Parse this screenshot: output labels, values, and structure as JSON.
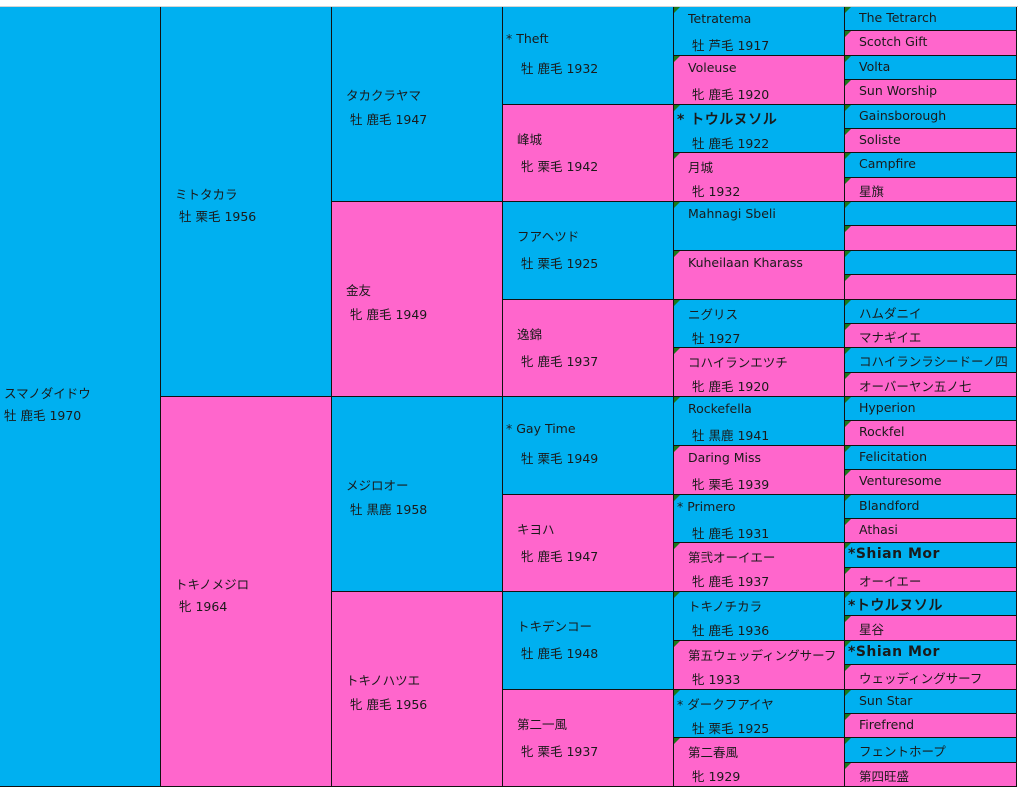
{
  "pedigree": {
    "gen1": [
      {
        "name": "スマノダイドウ",
        "info": "牡 鹿毛 1970"
      }
    ],
    "gen2": [
      {
        "name": "ミトタカラ",
        "info": "牡 栗毛 1956"
      },
      {
        "name": "トキノメジロ",
        "info": "牝  1964"
      }
    ],
    "gen3": [
      {
        "name": "タカクラヤマ",
        "info": "牡 鹿毛 1947"
      },
      {
        "name": "金友",
        "info": "牝 鹿毛 1949"
      },
      {
        "name": "メジロオー",
        "info": "牡 黒鹿 1958"
      },
      {
        "name": "トキノハツエ",
        "info": "牝 鹿毛 1956"
      }
    ],
    "gen4": [
      {
        "name": "* Theft",
        "info": "牡 鹿毛 1932"
      },
      {
        "name": "峰城",
        "info": "牝 栗毛 1942"
      },
      {
        "name": "フアヘツド",
        "info": "牡 栗毛 1925"
      },
      {
        "name": "逸錦",
        "info": "牝 鹿毛 1937"
      },
      {
        "name": "* Gay Time",
        "info": "牡 栗毛 1949"
      },
      {
        "name": "キヨハ",
        "info": "牝 鹿毛 1947"
      },
      {
        "name": "トキデンコー",
        "info": "牡 鹿毛 1948"
      },
      {
        "name": "第二一風",
        "info": "牝 栗毛 1937"
      }
    ],
    "gen5": [
      {
        "name": "Tetratema",
        "info": "牡 芦毛 1917"
      },
      {
        "name": "Voleuse",
        "info": "牝 鹿毛 1920"
      },
      {
        "name": "* トウルヌソル",
        "info": "牡 鹿毛 1922",
        "bold": true
      },
      {
        "name": "月城",
        "info": "牝  1932"
      },
      {
        "name": "Mahnagi Sbeli"
      },
      {
        "name": "Kuheilaan Kharass"
      },
      {
        "name": "ニグリス",
        "info": "牡  1927"
      },
      {
        "name": "コハイランエツチ",
        "info": "牝 鹿毛 1920"
      },
      {
        "name": "Rockefella",
        "info": "牡 黒鹿 1941"
      },
      {
        "name": "Daring Miss",
        "info": "牝 栗毛 1939"
      },
      {
        "name": "* Primero",
        "info": "牡 鹿毛 1931"
      },
      {
        "name": "第弐オーイエー",
        "info": "牝 鹿毛 1937"
      },
      {
        "name": "トキノチカラ",
        "info": "牡 鹿毛 1936"
      },
      {
        "name": "第五ウェッディングサーフ",
        "info": "牝  1933"
      },
      {
        "name": "* ダークフアイヤ",
        "info": "牡 栗毛 1925"
      },
      {
        "name": "第二春風",
        "info": "牝  1929"
      }
    ],
    "gen6": [
      {
        "name": "The Tetrarch"
      },
      {
        "name": "Scotch Gift"
      },
      {
        "name": "Volta"
      },
      {
        "name": "Sun Worship"
      },
      {
        "name": "Gainsborough"
      },
      {
        "name": "Soliste"
      },
      {
        "name": "Campfire"
      },
      {
        "name": "星旗"
      },
      null,
      null,
      null,
      null,
      {
        "name": "ハムダニイ"
      },
      {
        "name": "マナギイエ"
      },
      {
        "name": "コハイランラシードーノ四"
      },
      {
        "name": "オーバーヤン五ノ七"
      },
      {
        "name": "Hyperion"
      },
      {
        "name": "Rockfel"
      },
      {
        "name": "Felicitation"
      },
      {
        "name": "Venturesome"
      },
      {
        "name": "Blandford"
      },
      {
        "name": "Athasi"
      },
      {
        "name": "*Shian Mor",
        "bold": true
      },
      {
        "name": "オーイエー"
      },
      {
        "name": "*トウルヌソル",
        "bold": true
      },
      {
        "name": "星谷"
      },
      {
        "name": "*Shian Mor",
        "bold": true
      },
      {
        "name": "ウェッディングサーフ"
      },
      {
        "name": "Sun Star"
      },
      {
        "name": "Firefrend"
      },
      {
        "name": "フェントホープ"
      },
      {
        "name": "第四旺盛"
      }
    ]
  }
}
